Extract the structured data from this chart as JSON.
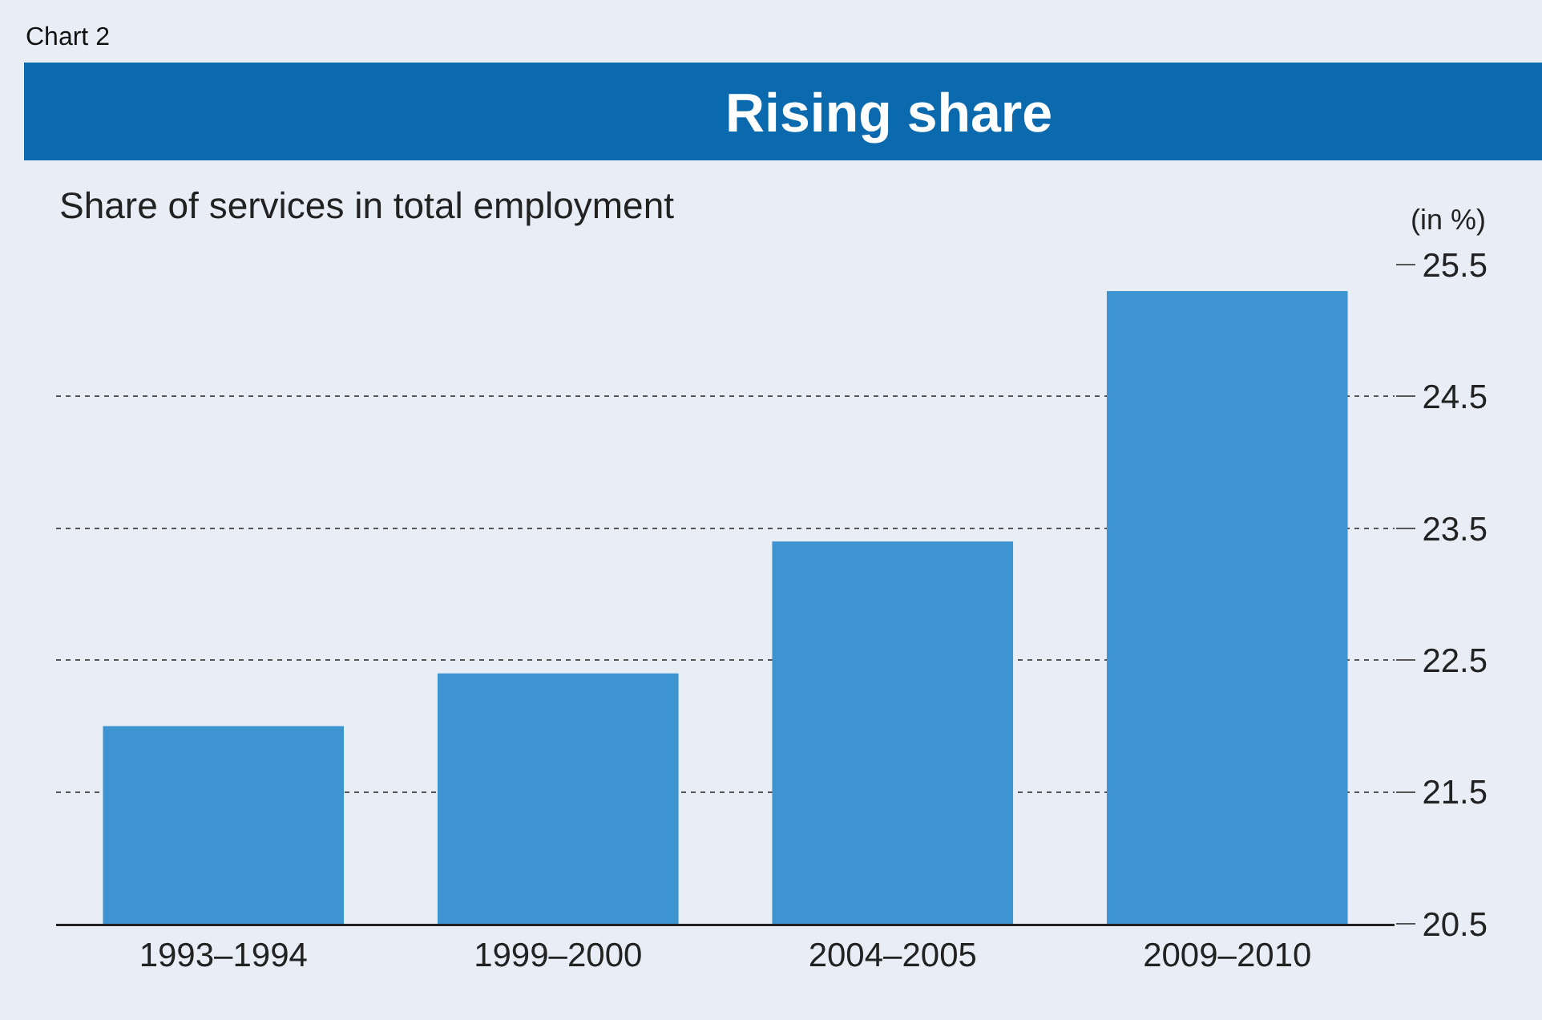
{
  "chart_data": {
    "type": "bar",
    "title": "Rising share",
    "subtitle": "Share of services in total employment",
    "ylabel": "(in %)",
    "annotations": [
      "Chart 2"
    ],
    "categories": [
      "1993–1994",
      "1999–2000",
      "2004–2005",
      "2009–2010"
    ],
    "values": [
      22.0,
      22.4,
      23.4,
      25.3
    ],
    "color": "#3d94d0",
    "ylim": [
      20.5,
      25.5
    ],
    "yticks": [
      20.5,
      21.5,
      22.5,
      23.5,
      24.5,
      25.5
    ],
    "grid": "y"
  }
}
